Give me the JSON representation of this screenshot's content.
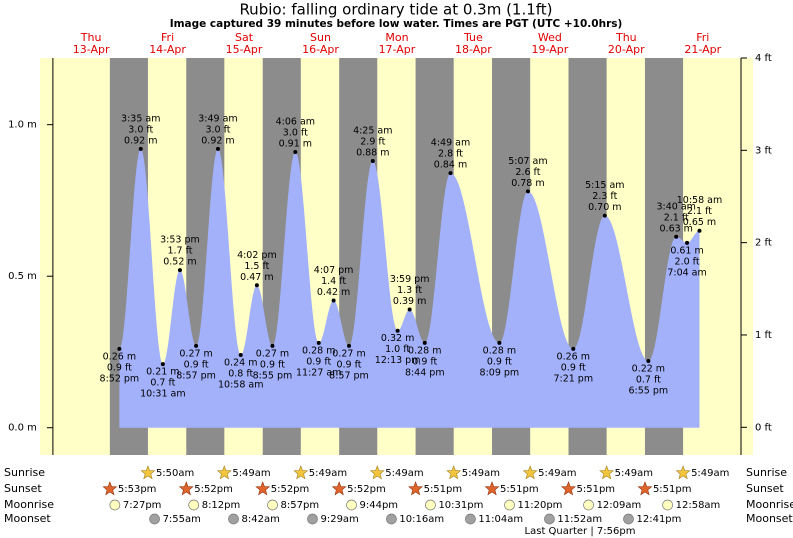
{
  "chart_data": {
    "type": "area",
    "title": "Rubio: falling  ordinary tide at 0.3m (1.1ft)",
    "subtitle": "Image captured 39 minutes before low water. Times are PGT (UTC +10.0hrs)",
    "ylim": [
      -0.09,
      1.22
    ],
    "yticks": [
      {
        "value": 0,
        "label": "0.0 m"
      },
      {
        "value": 0.5,
        "label": "0.5 m"
      },
      {
        "value": 1.0,
        "label": "1.0 m"
      }
    ],
    "y2lim": [
      -0.3,
      4.0
    ],
    "y2ticks": [
      {
        "value": 0,
        "label": "0 ft"
      },
      {
        "value": 1,
        "label": "1 ft"
      },
      {
        "value": 2,
        "label": "2 ft"
      },
      {
        "value": 3,
        "label": "3 ft"
      },
      {
        "value": 4,
        "label": "4 ft"
      }
    ],
    "color": "#a3b1fb",
    "row_labels": {
      "sunrise": "Sunrise",
      "sunset": "Sunset",
      "moonrise": "Moonrise",
      "moonset": "Moonset"
    },
    "moon_phase": "Last Quarter | 7:56pm",
    "days": [
      {
        "weekday": "Thu",
        "date": "13-Apr",
        "sunset": "5:53pm",
        "moonrise": "7:27pm",
        "tides": [
          {
            "time": "8:52 pm",
            "height": 0.26,
            "height_label": "0.26 m",
            "feet_label": "0.9 ft"
          }
        ]
      },
      {
        "weekday": "Fri",
        "date": "14-Apr",
        "sunrise": "5:50am",
        "sunset": "5:52pm",
        "moonrise": "8:12pm",
        "moonset": "7:55am",
        "tides": [
          {
            "time": "3:35 am",
            "height": 0.92,
            "height_label": "0.92 m",
            "feet_label": "3.0 ft"
          },
          {
            "time": "10:31 am",
            "height": 0.21,
            "height_label": "0.21 m",
            "feet_label": "0.7 ft"
          },
          {
            "time": "3:53 pm",
            "height": 0.52,
            "height_label": "0.52 m",
            "feet_label": "1.7 ft"
          },
          {
            "time": "8:57 pm",
            "height": 0.27,
            "height_label": "0.27 m",
            "feet_label": "0.9 ft"
          }
        ]
      },
      {
        "weekday": "Sat",
        "date": "15-Apr",
        "sunrise": "5:49am",
        "sunset": "5:52pm",
        "moonrise": "8:57pm",
        "moonset": "8:42am",
        "tides": [
          {
            "time": "3:49 am",
            "height": 0.92,
            "height_label": "0.92 m",
            "feet_label": "3.0 ft"
          },
          {
            "time": "10:58 am",
            "height": 0.24,
            "height_label": "0.24 m",
            "feet_label": "0.8 ft"
          },
          {
            "time": "4:02 pm",
            "height": 0.47,
            "height_label": "0.47 m",
            "feet_label": "1.5 ft"
          },
          {
            "time": "8:55 pm",
            "height": 0.27,
            "height_label": "0.27 m",
            "feet_label": "0.9 ft"
          }
        ]
      },
      {
        "weekday": "Sun",
        "date": "16-Apr",
        "sunrise": "5:49am",
        "sunset": "5:52pm",
        "moonrise": "9:44pm",
        "moonset": "9:29am",
        "tides": [
          {
            "time": "4:06 am",
            "height": 0.91,
            "height_label": "0.91 m",
            "feet_label": "3.0 ft"
          },
          {
            "time": "11:27 am",
            "height": 0.28,
            "height_label": "0.28 m",
            "feet_label": "0.9 ft"
          },
          {
            "time": "4:07 pm",
            "height": 0.42,
            "height_label": "0.42 m",
            "feet_label": "1.4 ft"
          },
          {
            "time": "8:57 pm",
            "height": 0.27,
            "height_label": "0.27 m",
            "feet_label": "0.9 ft"
          }
        ]
      },
      {
        "weekday": "Mon",
        "date": "17-Apr",
        "sunrise": "5:49am",
        "sunset": "5:51pm",
        "moonrise": "10:31pm",
        "moonset": "10:16am",
        "tides": [
          {
            "time": "4:25 am",
            "height": 0.88,
            "height_label": "0.88 m",
            "feet_label": "2.9 ft"
          },
          {
            "time": "12:13 pm",
            "height": 0.32,
            "height_label": "0.32 m",
            "feet_label": "1.0 ft"
          },
          {
            "time": "3:59 pm",
            "height": 0.39,
            "height_label": "0.39 m",
            "feet_label": "1.3 ft"
          },
          {
            "time": "8:44 pm",
            "height": 0.28,
            "height_label": "0.28 m",
            "feet_label": "0.9 ft"
          }
        ]
      },
      {
        "weekday": "Tue",
        "date": "18-Apr",
        "sunrise": "5:49am",
        "sunset": "5:51pm",
        "moonrise": "11:20pm",
        "moonset": "11:04am",
        "tides": [
          {
            "time": "4:49 am",
            "height": 0.84,
            "height_label": "0.84 m",
            "feet_label": "2.8 ft"
          },
          {
            "time": "8:09 pm",
            "height": 0.28,
            "height_label": "0.28 m",
            "feet_label": "0.9 ft"
          }
        ]
      },
      {
        "weekday": "Wed",
        "date": "19-Apr",
        "sunrise": "5:49am",
        "sunset": "5:51pm",
        "moonset": "11:52am",
        "tides": [
          {
            "time": "5:07 am",
            "height": 0.78,
            "height_label": "0.78 m",
            "feet_label": "2.6 ft"
          },
          {
            "time": "7:21 pm",
            "height": 0.26,
            "height_label": "0.26 m",
            "feet_label": "0.9 ft"
          }
        ]
      },
      {
        "weekday": "Thu",
        "date": "20-Apr",
        "sunrise": "5:49am",
        "sunset": "5:51pm",
        "moonrise": "12:09am",
        "moonset": "12:41pm",
        "tides": [
          {
            "time": "5:15 am",
            "height": 0.7,
            "height_label": "0.70 m",
            "feet_label": "2.3 ft"
          },
          {
            "time": "6:55 pm",
            "height": 0.22,
            "height_label": "0.22 m",
            "feet_label": "0.7 ft"
          }
        ]
      },
      {
        "weekday": "Fri",
        "date": "21-Apr",
        "sunrise": "5:49am",
        "moonrise": "12:58am",
        "tides": [
          {
            "time": "3:40 am",
            "height": 0.63,
            "height_label": "0.63 m",
            "feet_label": "2.1 ft"
          },
          {
            "time": "7:04 am",
            "height": 0.61,
            "height_label": "0.61 m",
            "feet_label": "2.0 ft"
          },
          {
            "time": "10:58 am",
            "height": 0.65,
            "height_label": "0.65 m",
            "feet_label": "2.1 ft"
          }
        ]
      }
    ]
  }
}
